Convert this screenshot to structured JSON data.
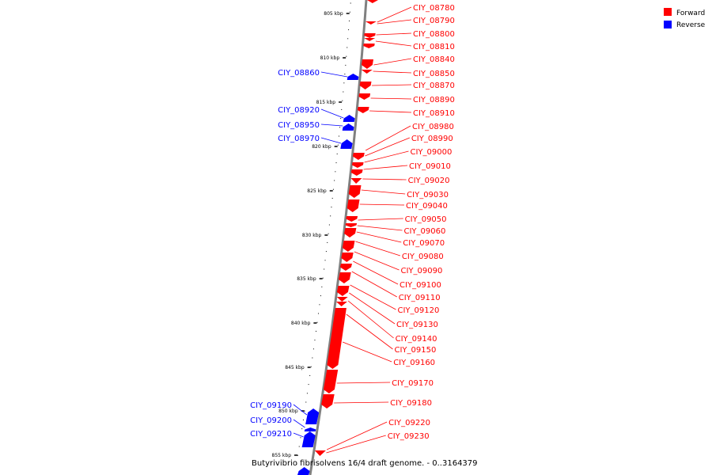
{
  "caption": "Butyrivibrio fibrisolvens 16/4 draft genome. - 0..3164379",
  "legend": [
    {
      "label": "Forward",
      "color": "#ff0000"
    },
    {
      "label": "Reverse",
      "color": "#0000ff"
    }
  ],
  "colors": {
    "forward": "#ff0000",
    "reverse": "#0000ff",
    "backbone": "#808080",
    "tick": "#000000"
  },
  "scale_labels": [
    "805 kbp",
    "810 kbp",
    "815 kbp",
    "820 kbp",
    "825 kbp",
    "830 kbp",
    "835 kbp",
    "840 kbp",
    "845 kbp",
    "850 kbp",
    "855 kbp"
  ],
  "forward_genes": [
    "CIY_08780",
    "CIY_08790",
    "CIY_08800",
    "CIY_08810",
    "CIY_08840",
    "CIY_08850",
    "CIY_08870",
    "CIY_08890",
    "CIY_08910",
    "CIY_08980",
    "CIY_08990",
    "CIY_09000",
    "CIY_09010",
    "CIY_09020",
    "CIY_09030",
    "CIY_09040",
    "CIY_09050",
    "CIY_09060",
    "CIY_09070",
    "CIY_09080",
    "CIY_09090",
    "CIY_09100",
    "CIY_09110",
    "CIY_09120",
    "CIY_09130",
    "CIY_09140",
    "CIY_09150",
    "CIY_09160",
    "CIY_09170",
    "CIY_09180",
    "CIY_09220",
    "CIY_09230"
  ],
  "reverse_genes": [
    "CIY_08860",
    "CIY_08920",
    "CIY_08950",
    "CIY_08970",
    "CIY_09190",
    "CIY_09200",
    "CIY_09210"
  ]
}
